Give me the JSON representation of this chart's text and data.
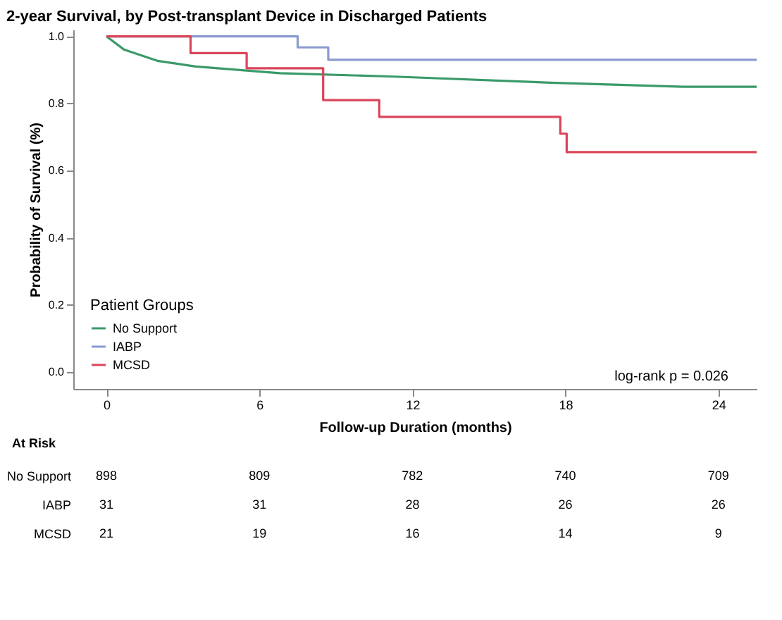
{
  "chart_data": {
    "type": "step",
    "title": "2-year Survival, by Post-transplant Device in Discharged Patients",
    "xlabel": "Follow-up Duration (months)",
    "ylabel": "Probability of Survival (%)",
    "legend_title": "Patient Groups",
    "legend": "bottom left",
    "grid": false,
    "marker": "none",
    "line_style": "solid",
    "xlim": [
      -1.3,
      25.5
    ],
    "xticks": [
      0,
      6,
      12,
      18,
      24
    ],
    "ylim": [
      -0.05,
      1.02
    ],
    "yticks": [
      {
        "value": 0,
        "label": "0.0"
      },
      {
        "value": 0.2,
        "label": "0.2"
      },
      {
        "value": 0.4,
        "label": "0.4"
      },
      {
        "value": 0.6,
        "label": "0.6"
      },
      {
        "value": 0.8,
        "label": "0.8"
      },
      {
        "value": 1,
        "label": "1.0"
      }
    ],
    "series": [
      {
        "name": "No Support",
        "type": "line",
        "color": "#3a9a6a",
        "x": [
          0,
          0.7,
          2.0,
          3.5,
          6.8,
          11.3,
          17.4,
          22.6,
          25.5
        ],
        "values": [
          1.0,
          0.96,
          0.927,
          0.91,
          0.89,
          0.88,
          0.862,
          0.85,
          0.85
        ]
      },
      {
        "name": "IABP",
        "color": "#8a9ad0",
        "x": [
          0,
          7.5,
          8.7,
          25.5
        ],
        "values": [
          1.0,
          0.967,
          0.93,
          0.93
        ]
      },
      {
        "name": "MCSD",
        "color": "#d9455a",
        "x": [
          0,
          3.3,
          5.5,
          8.5,
          10.7,
          17.8,
          18.05,
          25.5
        ],
        "values": [
          1.0,
          0.95,
          0.905,
          0.81,
          0.76,
          0.71,
          0.655,
          0.655
        ]
      }
    ],
    "annotations": [
      "log-rank p = 0.026",
      "At Risk",
      "No Support",
      "898",
      "809",
      "782",
      "740",
      "709",
      "IABP",
      "31",
      "31",
      "28",
      "26",
      "26",
      "MCSD",
      "21",
      "19",
      "16",
      "14",
      "9"
    ]
  }
}
